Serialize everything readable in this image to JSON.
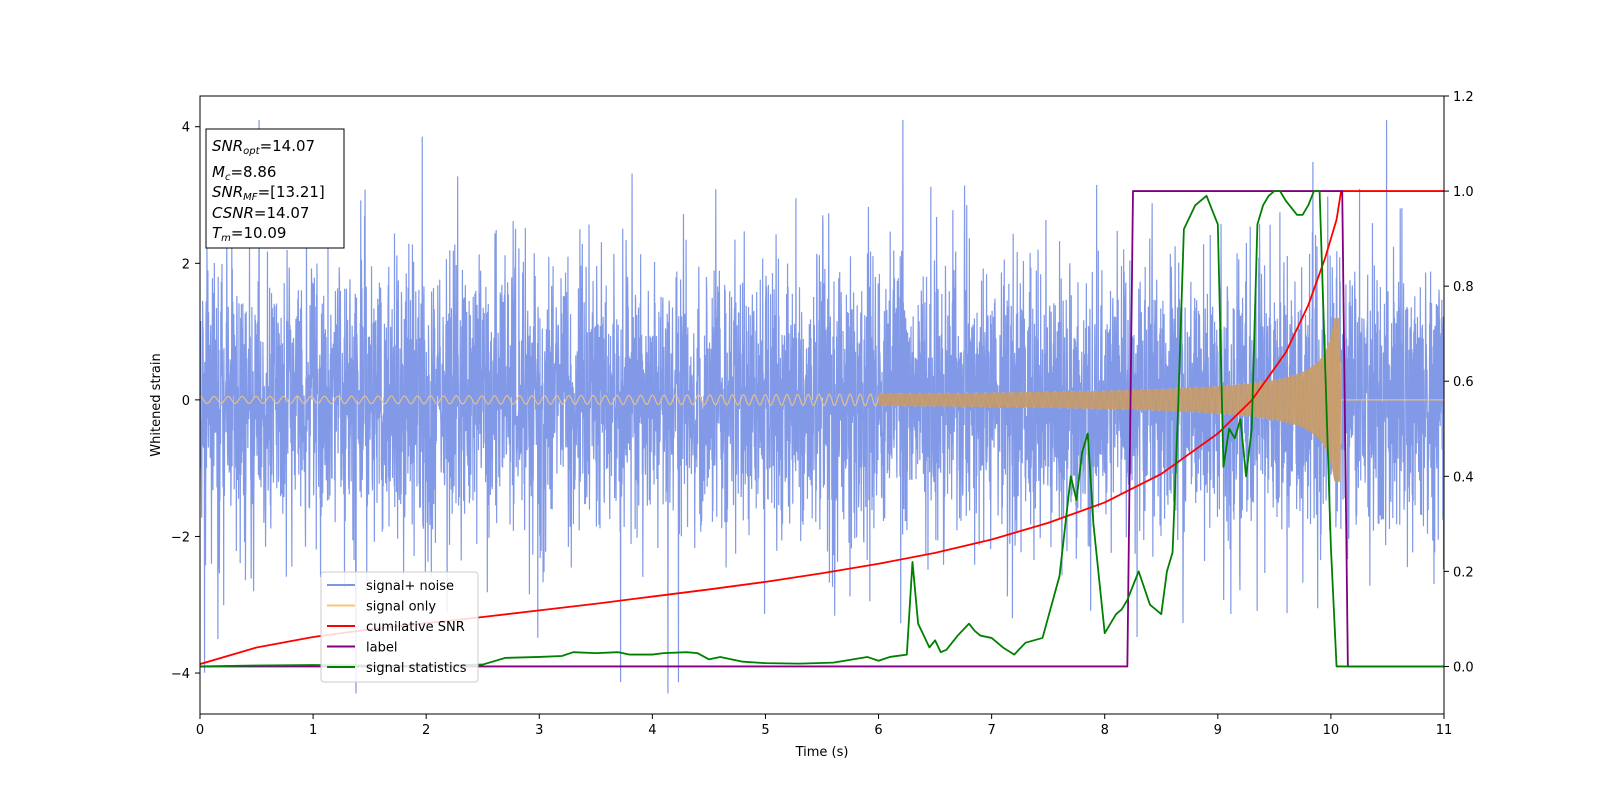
{
  "chart_data": {
    "type": "line",
    "xlabel": "Time (s)",
    "ylabel": "Whitened strain",
    "xlim": [
      0,
      11
    ],
    "ylim": [
      -4.6,
      4.45
    ],
    "y2lim": [
      -0.1,
      1.2
    ],
    "xticks": [
      0,
      1,
      2,
      3,
      4,
      5,
      6,
      7,
      8,
      9,
      10,
      11
    ],
    "yticks": [
      -4,
      -2,
      0,
      2,
      4
    ],
    "y2ticks": [
      0.0,
      0.2,
      0.4,
      0.6,
      0.8,
      1.0,
      1.2
    ],
    "grid": false,
    "legend_position": "lower-left",
    "annotations": {
      "snr_opt": {
        "symbol": "SNR",
        "sub": "opt",
        "value": "=14.07"
      },
      "mc": {
        "symbol": "M",
        "sub": "c",
        "value": "=8.86"
      },
      "snr_mf": {
        "symbol": "SNR",
        "sub": "MF",
        "value": "=[13.21]"
      },
      "csnr": {
        "symbol": "CSNR",
        "sub": "",
        "value": "=14.07"
      },
      "tm": {
        "symbol": "T",
        "sub": "m",
        "value": "=10.09"
      }
    },
    "series": [
      {
        "name": "signal+ noise",
        "axis": "left",
        "color": "#7a94e6",
        "description_values": {
          "noise_std": 1.0,
          "t_start": 0,
          "t_end": 11
        }
      },
      {
        "name": "signal only",
        "axis": "left",
        "color": "#f6c77a",
        "description_values": {
          "chirp_start_amplitude": 0.05,
          "chirp_end_amplitude": 1.2,
          "merger_time": 10.09
        }
      },
      {
        "name": "cumilative SNR",
        "axis": "right",
        "color": "#ff0000",
        "x": [
          0,
          0.5,
          1,
          1.5,
          2,
          2.5,
          3,
          3.5,
          4,
          4.5,
          5,
          5.5,
          6,
          6.5,
          7,
          7.5,
          8,
          8.5,
          9,
          9.3,
          9.6,
          9.8,
          9.95,
          10.05,
          10.09,
          10.1,
          11
        ],
        "values": [
          0.005,
          0.04,
          0.062,
          0.078,
          0.091,
          0.104,
          0.118,
          0.132,
          0.147,
          0.162,
          0.178,
          0.196,
          0.216,
          0.239,
          0.267,
          0.302,
          0.345,
          0.405,
          0.49,
          0.56,
          0.66,
          0.76,
          0.86,
          0.94,
          1.0,
          1.0,
          1.0
        ]
      },
      {
        "name": "label",
        "axis": "right",
        "color": "#800080",
        "x": [
          0,
          8.2,
          8.25,
          10.1,
          10.15,
          11
        ],
        "values": [
          0,
          0,
          1,
          1,
          0,
          0
        ]
      },
      {
        "name": "signal statistics",
        "axis": "right",
        "color": "#008000",
        "x": [
          0,
          0.5,
          1,
          1.5,
          2,
          2.5,
          2.7,
          3,
          3.2,
          3.3,
          3.5,
          3.7,
          3.8,
          4,
          4.1,
          4.3,
          4.4,
          4.5,
          4.6,
          4.8,
          5,
          5.3,
          5.6,
          5.9,
          6.0,
          6.1,
          6.25,
          6.3,
          6.35,
          6.45,
          6.5,
          6.55,
          6.6,
          6.7,
          6.8,
          6.85,
          6.9,
          7.0,
          7.1,
          7.2,
          7.3,
          7.45,
          7.6,
          7.7,
          7.75,
          7.8,
          7.85,
          7.9,
          8.0,
          8.1,
          8.15,
          8.2,
          8.3,
          8.4,
          8.45,
          8.5,
          8.55,
          8.6,
          8.65,
          8.7,
          8.8,
          8.9,
          8.95,
          9.0,
          9.05,
          9.1,
          9.15,
          9.2,
          9.25,
          9.3,
          9.35,
          9.4,
          9.45,
          9.5,
          9.55,
          9.6,
          9.7,
          9.75,
          9.8,
          9.85,
          9.9,
          10.0,
          10.05,
          10.1,
          10.15,
          10.2,
          10.5,
          11
        ],
        "values": [
          0.0,
          0.002,
          0.003,
          0.002,
          0.001,
          0.004,
          0.018,
          0.02,
          0.022,
          0.03,
          0.028,
          0.03,
          0.025,
          0.025,
          0.028,
          0.03,
          0.028,
          0.015,
          0.02,
          0.01,
          0.007,
          0.006,
          0.008,
          0.02,
          0.012,
          0.02,
          0.025,
          0.22,
          0.09,
          0.04,
          0.055,
          0.03,
          0.035,
          0.065,
          0.09,
          0.075,
          0.065,
          0.06,
          0.04,
          0.025,
          0.05,
          0.06,
          0.19,
          0.4,
          0.35,
          0.45,
          0.49,
          0.3,
          0.07,
          0.11,
          0.12,
          0.14,
          0.2,
          0.13,
          0.12,
          0.11,
          0.2,
          0.24,
          0.55,
          0.92,
          0.97,
          0.99,
          0.96,
          0.93,
          0.42,
          0.5,
          0.48,
          0.52,
          0.4,
          0.5,
          0.93,
          0.97,
          0.99,
          1.0,
          1.0,
          0.98,
          0.95,
          0.95,
          0.97,
          1.0,
          1.0,
          0.25,
          0.0,
          0.0,
          0.0,
          0.0,
          0.0,
          0.0
        ]
      }
    ]
  }
}
